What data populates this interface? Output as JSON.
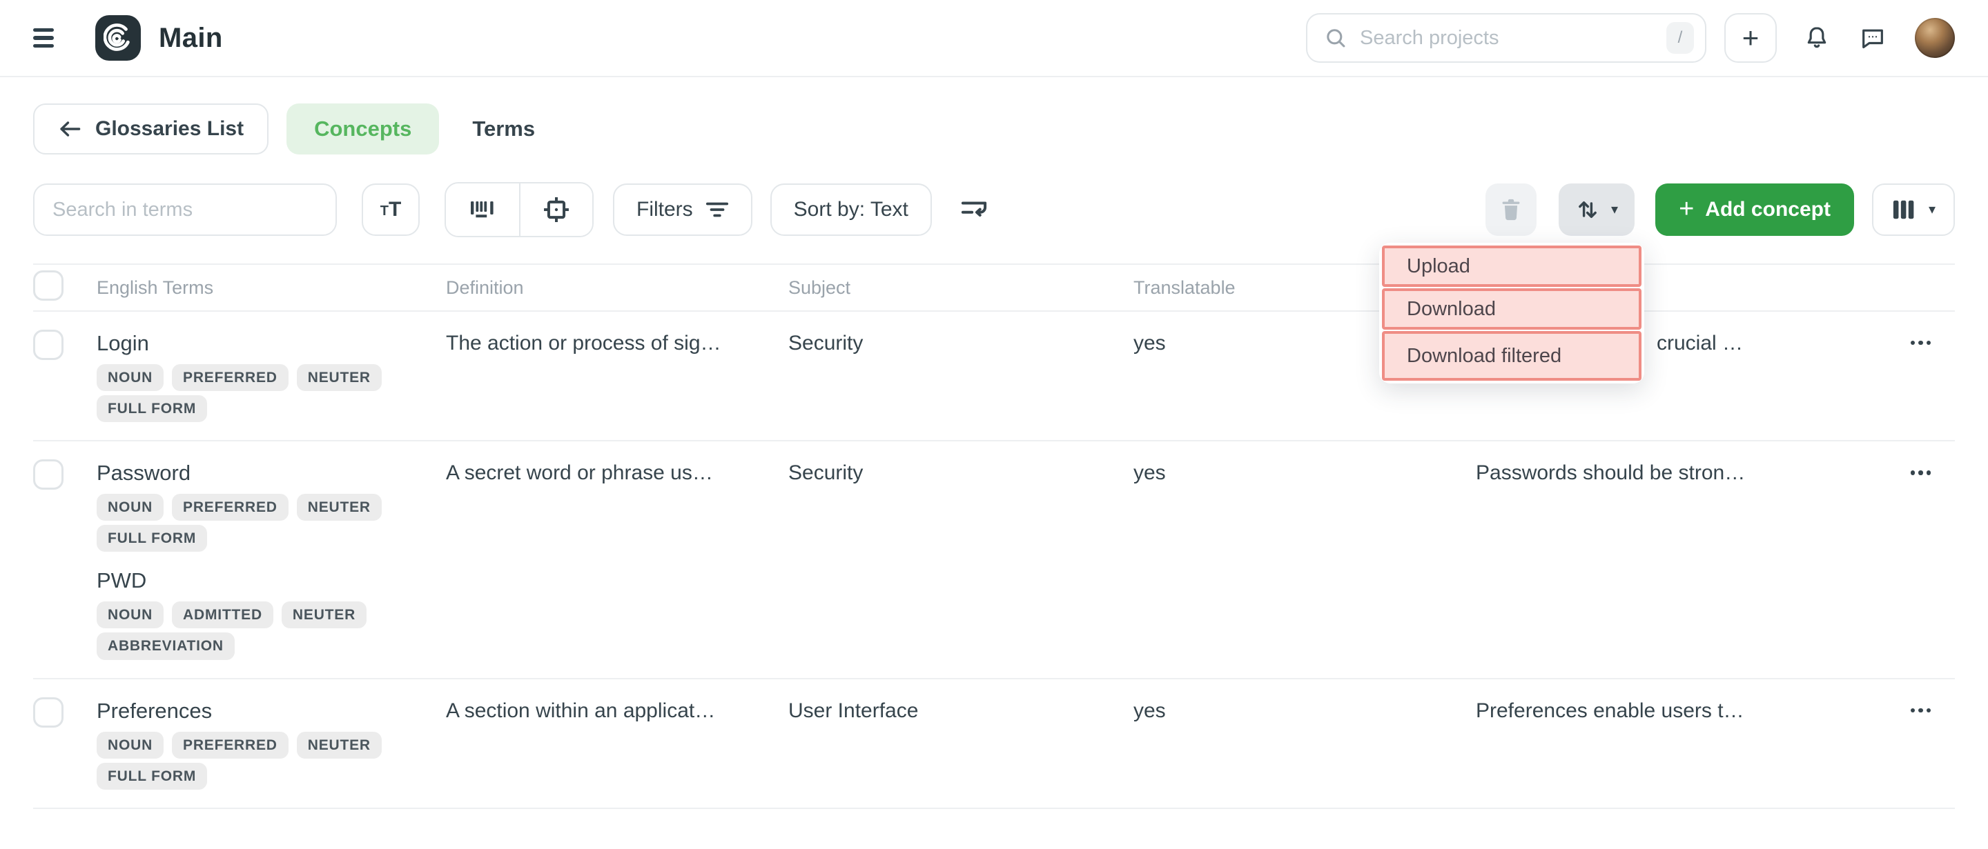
{
  "colors": {
    "dark": "#36444c",
    "title": "#263238",
    "muted": "#9aa3ab",
    "placeholder": "#b7bfc5",
    "border": "#e3e7ea",
    "divider": "#edeff1",
    "badge-bg": "#ececec",
    "badge-text": "#4a555c",
    "green-bg": "#e4f3e5",
    "green-text": "#56b65f",
    "green-btn": "#2f9e44",
    "pink-bg": "#fcdedb",
    "pink-border": "#ef8d85",
    "menu-text": "#4d454b",
    "trash-bg": "#f0f2f4",
    "trash-icon": "#b9c2c9",
    "updown-bg": "#e3e6e9"
  },
  "icons": {
    "plus": "+",
    "caret": "▾",
    "match_case_small": "T",
    "match_case_big": "T"
  },
  "header": {
    "title": "Main",
    "search": {
      "placeholder": "Search projects",
      "shortcut": "/"
    }
  },
  "nav": {
    "back_label": "Glossaries List",
    "tabs": [
      {
        "label": "Concepts",
        "active": true
      },
      {
        "label": "Terms",
        "active": false
      }
    ]
  },
  "toolbar": {
    "search_placeholder": "Search in terms",
    "filters_label": "Filters",
    "sort_label": "Sort by: Text",
    "add_concept_label": "Add concept"
  },
  "export_menu": {
    "items": [
      "Upload",
      "Download",
      "Download filtered"
    ]
  },
  "table": {
    "columns": [
      "English Terms",
      "Definition",
      "Subject",
      "Translatable"
    ],
    "rows": [
      {
        "terms": [
          {
            "text": "Login",
            "tags": [
              "NOUN",
              "PREFERRED",
              "NEUTER",
              "FULL FORM"
            ]
          }
        ],
        "definition": "The action or process of sig…",
        "subject": "Security",
        "translatable": "yes",
        "note": "crucial …"
      },
      {
        "terms": [
          {
            "text": "Password",
            "tags": [
              "NOUN",
              "PREFERRED",
              "NEUTER",
              "FULL FORM"
            ]
          },
          {
            "text": "PWD",
            "tags": [
              "NOUN",
              "ADMITTED",
              "NEUTER",
              "ABBREVIATION"
            ]
          }
        ],
        "definition": "A secret word or phrase us…",
        "subject": "Security",
        "translatable": "yes",
        "note": "Passwords should be stron…"
      },
      {
        "terms": [
          {
            "text": "Preferences",
            "tags": [
              "NOUN",
              "PREFERRED",
              "NEUTER",
              "FULL FORM"
            ]
          }
        ],
        "definition": "A section within an applicat…",
        "subject": "User Interface",
        "translatable": "yes",
        "note": "Preferences enable users t…"
      }
    ]
  }
}
